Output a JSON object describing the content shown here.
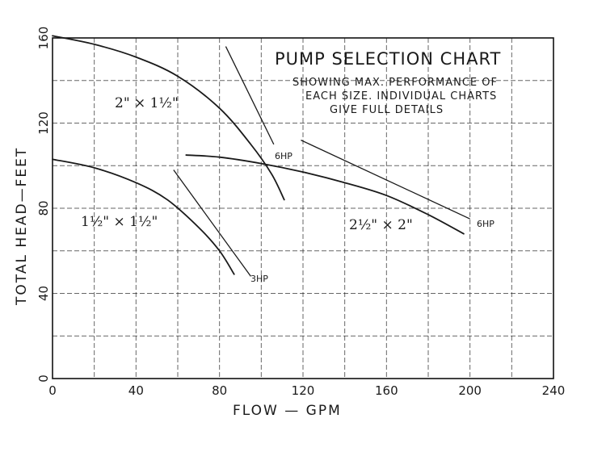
{
  "chart_data": {
    "type": "line",
    "title": "PUMP SELECTION CHART",
    "subtitle_lines": [
      "SHOWING  MAX. PERFORMANCE  OF",
      "EACH SIZE.  INDIVIDUAL  CHARTS",
      "GIVE  FULL  DETAILS"
    ],
    "xlabel": "FLOW — GPM",
    "ylabel": "TOTAL HEAD—FEET",
    "xlim": [
      0,
      240
    ],
    "ylim": [
      0,
      160
    ],
    "x_ticks": [
      0,
      40,
      80,
      120,
      160,
      200,
      240
    ],
    "y_ticks": [
      0,
      40,
      80,
      120,
      160
    ],
    "x_tick_labels": [
      "0",
      "40",
      "80",
      "120",
      "160",
      "200",
      "240"
    ],
    "y_tick_labels": [
      "0",
      "40",
      "80",
      "120",
      "160"
    ],
    "grid": true,
    "series": [
      {
        "name": "2\" × 1½\"",
        "x": [
          0,
          20,
          40,
          60,
          80,
          95,
          105,
          111
        ],
        "y": [
          161,
          157,
          151,
          142,
          127,
          110,
          96,
          84
        ]
      },
      {
        "name": "1½\" × 1½\"",
        "x": [
          0,
          20,
          40,
          55,
          70,
          80,
          87
        ],
        "y": [
          103,
          99,
          92,
          84,
          71,
          60,
          49
        ]
      },
      {
        "name": "2½\" × 2\"",
        "x": [
          64,
          80,
          100,
          120,
          140,
          160,
          180,
          197
        ],
        "y": [
          105,
          104,
          101,
          97,
          92,
          86,
          77,
          68
        ]
      }
    ],
    "horsepower_lines": [
      {
        "label": "3HP",
        "x": [
          58,
          95
        ],
        "y": [
          98,
          48
        ]
      },
      {
        "label": "6HP",
        "x": [
          83,
          106
        ],
        "y": [
          156,
          110
        ]
      },
      {
        "label": "6HP",
        "x": [
          119,
          200
        ],
        "y": [
          112,
          75
        ]
      }
    ]
  }
}
